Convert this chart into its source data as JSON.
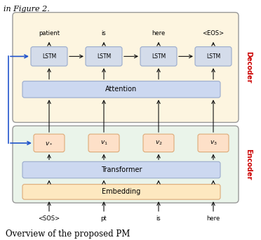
{
  "fig_width": 3.72,
  "fig_height": 3.42,
  "dpi": 100,
  "bg_color": "#ffffff",
  "decoder_bg": "#fdf5e0",
  "encoder_bg": "#eaf4ea",
  "lstm_bg": "#d4dcea",
  "lstm_border": "#9aabcc",
  "attention_bg": "#ccd8f0",
  "attention_border": "#9aabcc",
  "transformer_bg": "#ccd8f0",
  "transformer_border": "#9aabcc",
  "embedding_bg": "#fde8c0",
  "embedding_border": "#ddaa77",
  "v_bg": "#fde0c8",
  "v_border": "#ddaa77",
  "outer_border": "#999999",
  "decoder_label_color": "#cc0000",
  "encoder_label_color": "#cc0000",
  "header_text": "in Figure 2.",
  "footer_text": "Overview of the proposed PM",
  "input_tokens": [
    "<SOS>",
    "pt",
    "is",
    "here"
  ],
  "output_tokens": [
    "patient",
    "is",
    "here",
    "<EOS>"
  ],
  "v_labels": [
    "$v_*$",
    "$v_1$",
    "$v_2$",
    "$v_3$"
  ],
  "lstm_label": "LSTM",
  "attention_label": "Attention",
  "transformer_label": "Transformer",
  "embedding_label": "Embedding",
  "decoder_label": "Decoder",
  "encoder_label": "Encoder",
  "arrow_color": "#111111",
  "blue_color": "#2255cc"
}
